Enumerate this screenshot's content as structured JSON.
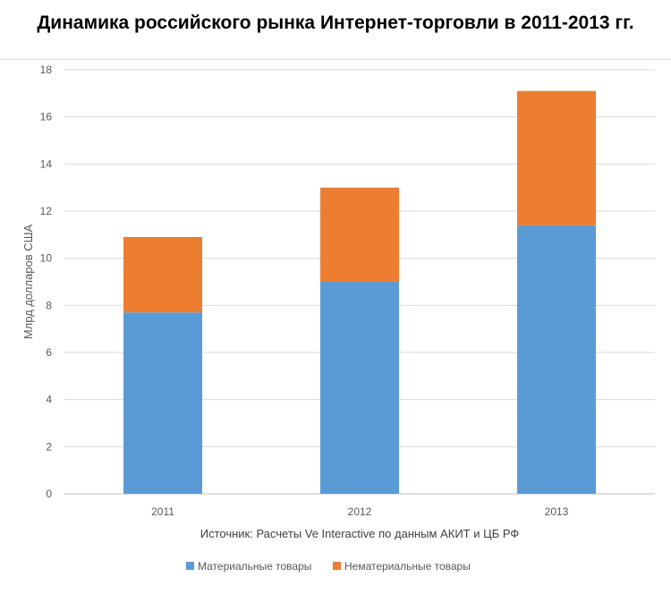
{
  "title": "Динамика российского рынка Интернет-торговли в 2011-2013 гг.",
  "chart_data": {
    "type": "bar",
    "stacked": true,
    "categories": [
      "2011",
      "2012",
      "2013"
    ],
    "series": [
      {
        "name": "Материальные товары",
        "values": [
          7.7,
          9.0,
          11.4
        ],
        "color": "#5b9bd5"
      },
      {
        "name": "Нематериальные товары",
        "values": [
          3.2,
          4.0,
          5.7
        ],
        "color": "#ed7d31"
      }
    ],
    "ylabel": "Млрд долларов США",
    "xlabel": "",
    "ylim": [
      0,
      18
    ],
    "yticks": [
      0,
      2,
      4,
      6,
      8,
      10,
      12,
      14,
      16,
      18
    ],
    "grid": true,
    "legend_position": "bottom",
    "source": "Источник:  Расчеты Ve  Interactive по данным АКИТ  и ЦБ РФ"
  }
}
